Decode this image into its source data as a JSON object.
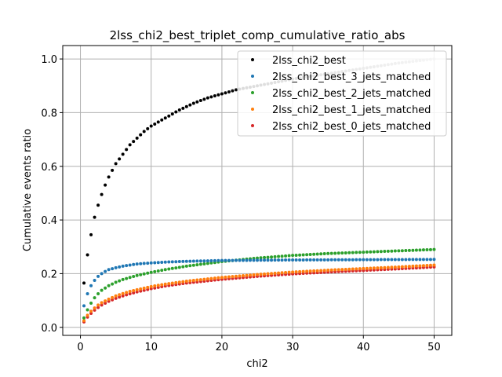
{
  "chart_data": {
    "type": "scatter",
    "title": "2lss_chi2_best_triplet_comp_cumulative_ratio_abs",
    "xlabel": "chi2",
    "ylabel": "Cumulative events ratio",
    "xlim": [
      -2.5,
      52.5
    ],
    "ylim": [
      -0.03,
      1.05
    ],
    "xticks": [
      0,
      10,
      20,
      30,
      40,
      50
    ],
    "yticks": [
      0.0,
      0.2,
      0.4,
      0.6,
      0.8,
      1.0
    ],
    "xtick_labels": [
      "0",
      "10",
      "20",
      "30",
      "40",
      "50"
    ],
    "ytick_labels": [
      "0.0",
      "0.2",
      "0.4",
      "0.6",
      "0.8",
      "1.0"
    ],
    "grid": true,
    "legend_position": "top-right",
    "x_start": 0.5,
    "x_end": 50,
    "x_step": 0.5,
    "series": [
      {
        "name": "2lss_chi2_best",
        "color": "#000000",
        "samples": [
          [
            0.5,
            0.165
          ],
          [
            1,
            0.27
          ],
          [
            1.5,
            0.345
          ],
          [
            2,
            0.41
          ],
          [
            2.5,
            0.455
          ],
          [
            3,
            0.495
          ],
          [
            3.5,
            0.53
          ],
          [
            4,
            0.56
          ],
          [
            5,
            0.61
          ],
          [
            6,
            0.645
          ],
          [
            7,
            0.68
          ],
          [
            8,
            0.705
          ],
          [
            9,
            0.73
          ],
          [
            10,
            0.75
          ],
          [
            12,
            0.78
          ],
          [
            14,
            0.81
          ],
          [
            16,
            0.835
          ],
          [
            18,
            0.855
          ],
          [
            20,
            0.87
          ],
          [
            22,
            0.885
          ],
          [
            25,
            0.9
          ],
          [
            30,
            0.925
          ],
          [
            35,
            0.945
          ],
          [
            40,
            0.965
          ],
          [
            45,
            0.985
          ],
          [
            50,
            1.0
          ]
        ]
      },
      {
        "name": "2lss_chi2_best_3_jets_matched",
        "color": "#1f77b4",
        "samples": [
          [
            0.5,
            0.08
          ],
          [
            1,
            0.125
          ],
          [
            1.5,
            0.155
          ],
          [
            2,
            0.175
          ],
          [
            2.5,
            0.19
          ],
          [
            3,
            0.2
          ],
          [
            3.5,
            0.208
          ],
          [
            4,
            0.215
          ],
          [
            5,
            0.222
          ],
          [
            6,
            0.228
          ],
          [
            7,
            0.232
          ],
          [
            8,
            0.236
          ],
          [
            9,
            0.238
          ],
          [
            10,
            0.24
          ],
          [
            12,
            0.243
          ],
          [
            15,
            0.246
          ],
          [
            20,
            0.249
          ],
          [
            25,
            0.25
          ],
          [
            30,
            0.251
          ],
          [
            40,
            0.252
          ],
          [
            50,
            0.253
          ]
        ]
      },
      {
        "name": "2lss_chi2_best_2_jets_matched",
        "color": "#2ca02c",
        "samples": [
          [
            0.5,
            0.035
          ],
          [
            1,
            0.065
          ],
          [
            1.5,
            0.09
          ],
          [
            2,
            0.11
          ],
          [
            2.5,
            0.125
          ],
          [
            3,
            0.138
          ],
          [
            4,
            0.155
          ],
          [
            5,
            0.168
          ],
          [
            6,
            0.178
          ],
          [
            7,
            0.186
          ],
          [
            8,
            0.193
          ],
          [
            10,
            0.205
          ],
          [
            12,
            0.215
          ],
          [
            15,
            0.228
          ],
          [
            20,
            0.245
          ],
          [
            25,
            0.258
          ],
          [
            30,
            0.268
          ],
          [
            35,
            0.275
          ],
          [
            40,
            0.28
          ],
          [
            45,
            0.285
          ],
          [
            50,
            0.29
          ]
        ]
      },
      {
        "name": "2lss_chi2_best_1_jets_matched",
        "color": "#ff7f0e",
        "samples": [
          [
            0.5,
            0.025
          ],
          [
            1,
            0.045
          ],
          [
            1.5,
            0.06
          ],
          [
            2,
            0.072
          ],
          [
            2.5,
            0.083
          ],
          [
            3,
            0.092
          ],
          [
            4,
            0.105
          ],
          [
            5,
            0.117
          ],
          [
            6,
            0.126
          ],
          [
            7,
            0.134
          ],
          [
            8,
            0.14
          ],
          [
            10,
            0.152
          ],
          [
            12,
            0.161
          ],
          [
            15,
            0.172
          ],
          [
            20,
            0.186
          ],
          [
            25,
            0.197
          ],
          [
            30,
            0.206
          ],
          [
            35,
            0.213
          ],
          [
            40,
            0.219
          ],
          [
            45,
            0.225
          ],
          [
            50,
            0.232
          ]
        ]
      },
      {
        "name": "2lss_chi2_best_0_jets_matched",
        "color": "#d62728",
        "samples": [
          [
            0.5,
            0.02
          ],
          [
            1,
            0.038
          ],
          [
            1.5,
            0.052
          ],
          [
            2,
            0.064
          ],
          [
            2.5,
            0.074
          ],
          [
            3,
            0.083
          ],
          [
            4,
            0.097
          ],
          [
            5,
            0.108
          ],
          [
            6,
            0.117
          ],
          [
            7,
            0.125
          ],
          [
            8,
            0.132
          ],
          [
            10,
            0.144
          ],
          [
            12,
            0.154
          ],
          [
            15,
            0.165
          ],
          [
            20,
            0.179
          ],
          [
            25,
            0.19
          ],
          [
            30,
            0.199
          ],
          [
            35,
            0.206
          ],
          [
            40,
            0.212
          ],
          [
            45,
            0.218
          ],
          [
            50,
            0.225
          ]
        ]
      }
    ]
  }
}
